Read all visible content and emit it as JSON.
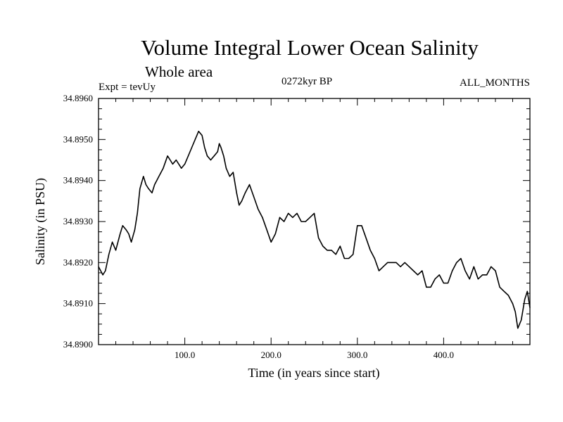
{
  "chart_data": {
    "type": "line",
    "title": "Volume Integral Lower Ocean Salinity",
    "subtitle": "Whole area",
    "annotations": {
      "left": "Expt = tevUy",
      "center": "0272kyr BP",
      "right": "ALL_MONTHS"
    },
    "xlabel": "Time (in years since start)",
    "ylabel": "Salinity (in PSU)",
    "xlim": [
      0,
      500
    ],
    "ylim": [
      34.89,
      34.896
    ],
    "x_ticks": [
      100,
      200,
      300,
      400
    ],
    "x_tick_labels": [
      "100.0",
      "200.0",
      "300.0",
      "400.0"
    ],
    "y_ticks": [
      34.89,
      34.891,
      34.892,
      34.893,
      34.894,
      34.895,
      34.896
    ],
    "y_tick_labels": [
      "34.8900",
      "34.8910",
      "34.8920",
      "34.8930",
      "34.8940",
      "34.8950",
      "34.8960"
    ],
    "grid": false,
    "series": [
      {
        "x": [
          0,
          5,
          8,
          12,
          16,
          20,
          25,
          28,
          32,
          35,
          38,
          42,
          45,
          48,
          52,
          55,
          58,
          62,
          65,
          70,
          75,
          80,
          83,
          86,
          90,
          93,
          96,
          100,
          104,
          108,
          112,
          116,
          120,
          123,
          126,
          130,
          134,
          138,
          140,
          142,
          145,
          148,
          152,
          156,
          160,
          163,
          166,
          170,
          175,
          180,
          185,
          190,
          195,
          200,
          205,
          210,
          215,
          220,
          225,
          230,
          235,
          240,
          245,
          250,
          255,
          260,
          265,
          270,
          275,
          280,
          285,
          290,
          295,
          300,
          305,
          310,
          315,
          320,
          325,
          330,
          335,
          340,
          345,
          350,
          355,
          360,
          365,
          370,
          375,
          380,
          385,
          390,
          395,
          400,
          405,
          410,
          415,
          420,
          425,
          430,
          435,
          440,
          445,
          450,
          455,
          460,
          465,
          470,
          475,
          480,
          483,
          486,
          490,
          494,
          497,
          500
        ],
        "y": [
          34.8919,
          34.8917,
          34.8918,
          34.8922,
          34.8925,
          34.8923,
          34.8927,
          34.8929,
          34.8928,
          34.8927,
          34.8925,
          34.8928,
          34.8932,
          34.8938,
          34.8941,
          34.8939,
          34.8938,
          34.8937,
          34.8939,
          34.8941,
          34.8943,
          34.8946,
          34.8945,
          34.8944,
          34.8945,
          34.8944,
          34.8943,
          34.8944,
          34.8946,
          34.8948,
          34.895,
          34.8952,
          34.8951,
          34.8948,
          34.8946,
          34.8945,
          34.8946,
          34.8947,
          34.8949,
          34.8948,
          34.8946,
          34.8943,
          34.8941,
          34.8942,
          34.8937,
          34.8934,
          34.8935,
          34.8937,
          34.8939,
          34.8936,
          34.8933,
          34.8931,
          34.8928,
          34.8925,
          34.8927,
          34.8931,
          34.893,
          34.8932,
          34.8931,
          34.8932,
          34.893,
          34.893,
          34.8931,
          34.8932,
          34.8926,
          34.8924,
          34.8923,
          34.8923,
          34.8922,
          34.8924,
          34.8921,
          34.8921,
          34.8922,
          34.8929,
          34.8929,
          34.8926,
          34.8923,
          34.8921,
          34.8918,
          34.8919,
          34.892,
          34.892,
          34.892,
          34.8919,
          34.892,
          34.8919,
          34.8918,
          34.8917,
          34.8918,
          34.8914,
          34.8914,
          34.8916,
          34.8917,
          34.8915,
          34.8915,
          34.8918,
          34.892,
          34.8921,
          34.8918,
          34.8916,
          34.8919,
          34.8916,
          34.8917,
          34.8917,
          34.8919,
          34.8918,
          34.8914,
          34.8913,
          34.8912,
          34.891,
          34.8908,
          34.8904,
          34.8906,
          34.8911,
          34.8913,
          34.8909
        ]
      }
    ]
  }
}
